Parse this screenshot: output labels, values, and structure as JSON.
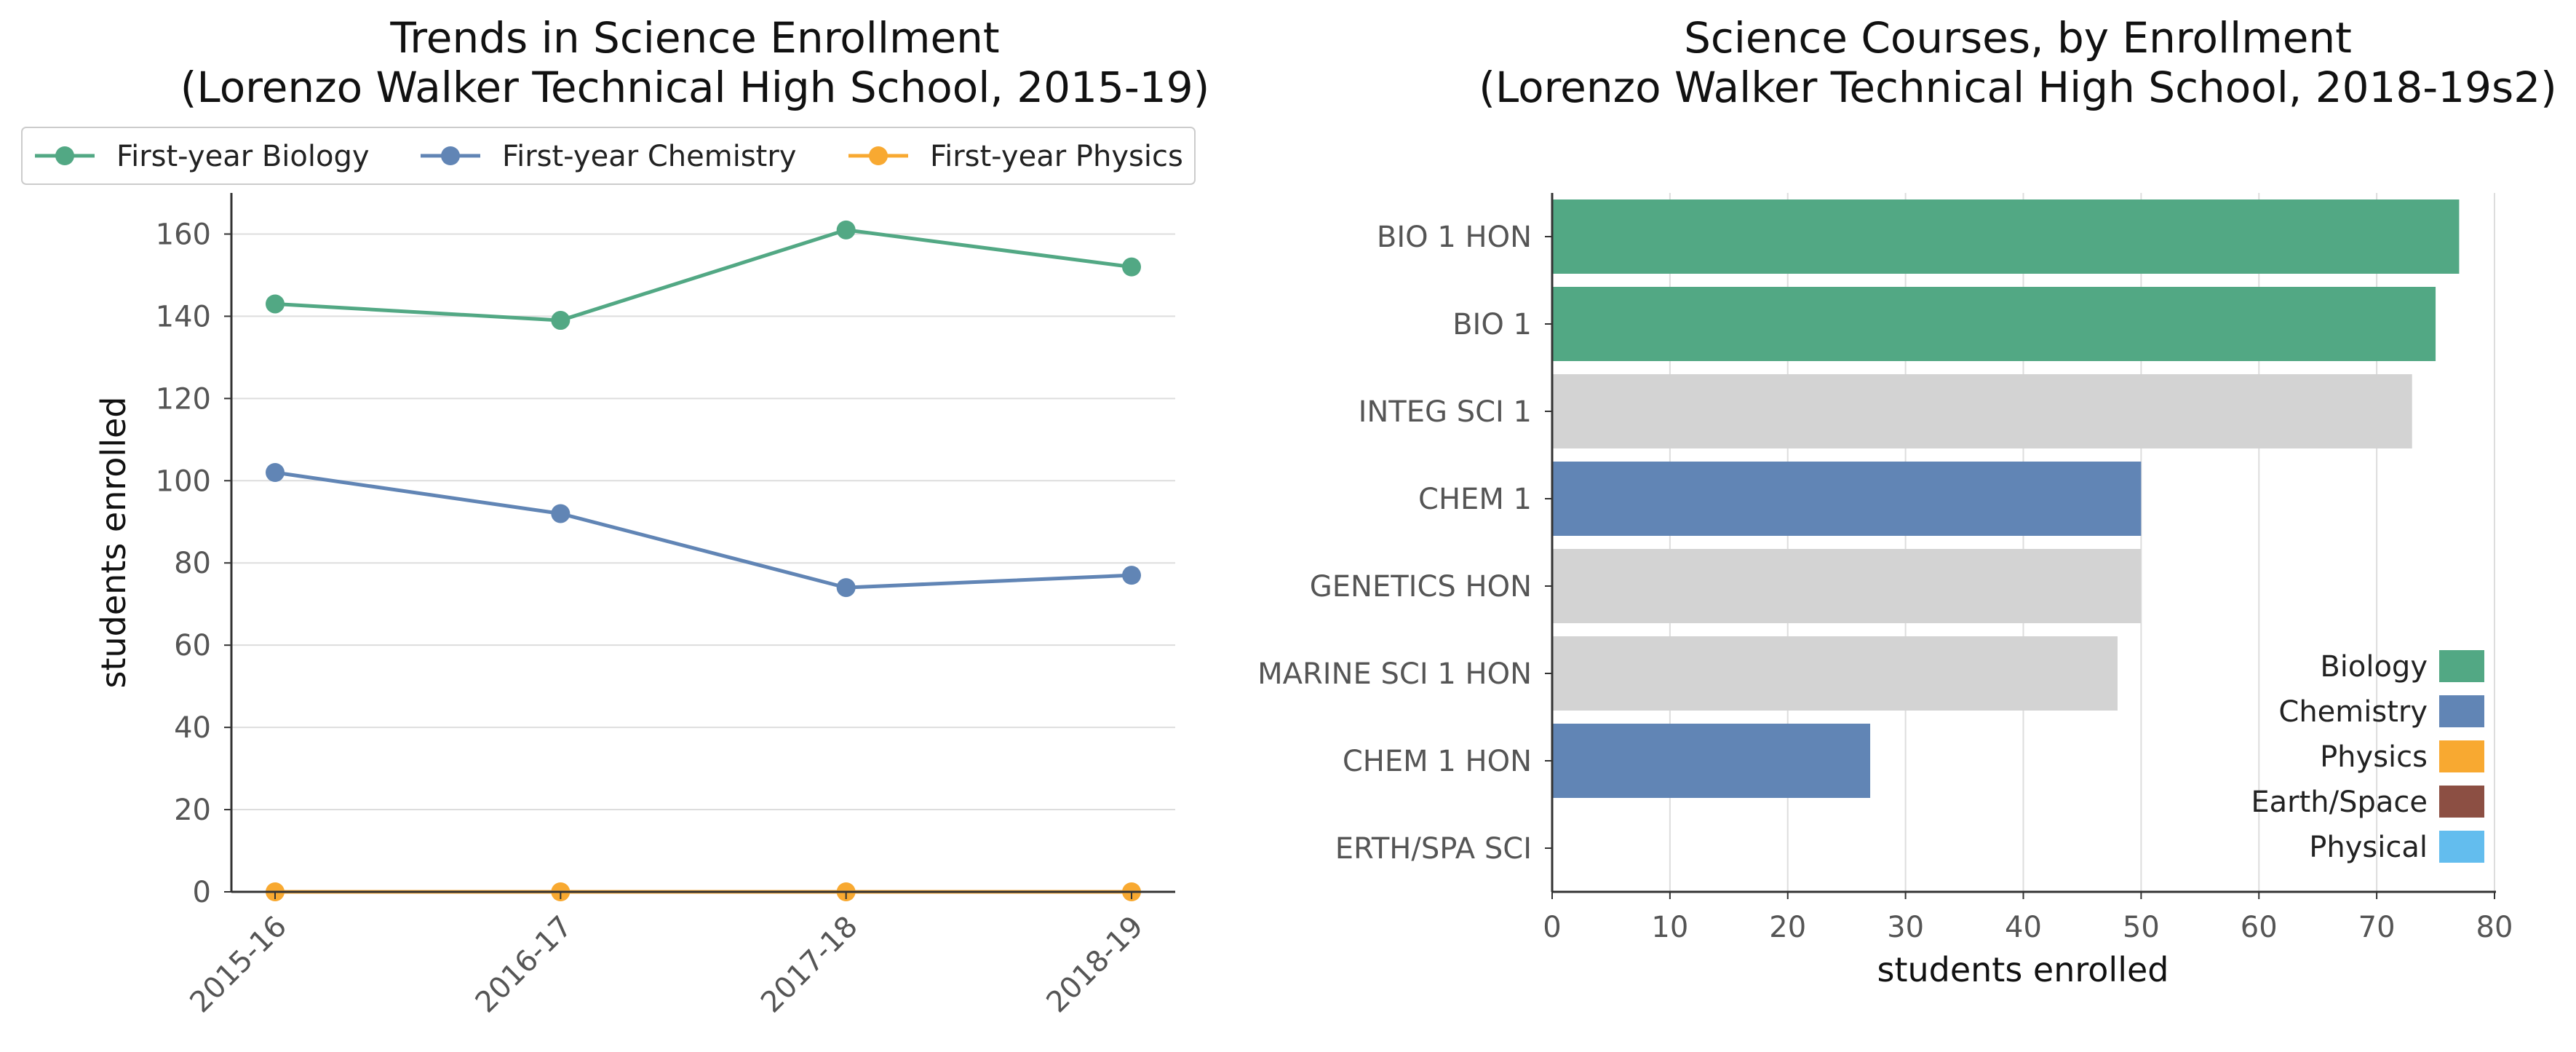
{
  "chart_data": [
    {
      "type": "line",
      "title": "Trends in Science Enrollment",
      "subtitle": "(Lorenzo Walker Technical High School, 2015-19)",
      "xlabel": "",
      "ylabel": "students enrolled",
      "categories": [
        "2015-16",
        "2016-17",
        "2017-18",
        "2018-19"
      ],
      "series": [
        {
          "name": "First-year Biology",
          "color": "#52a884",
          "values": [
            143,
            139,
            161,
            152
          ]
        },
        {
          "name": "First-year Chemistry",
          "color": "#6185b5",
          "values": [
            102,
            92,
            74,
            77
          ]
        },
        {
          "name": "First-year Physics",
          "color": "#f8a931",
          "values": [
            0,
            0,
            0,
            0
          ]
        }
      ],
      "ylim": [
        0,
        170
      ],
      "yticks": [
        0,
        20,
        40,
        60,
        80,
        100,
        120,
        140,
        160
      ],
      "grid": "horizontal",
      "legend_position": "top"
    },
    {
      "type": "bar",
      "orientation": "horizontal",
      "title": "Science Courses, by Enrollment",
      "subtitle": "(Lorenzo Walker Technical High School, 2018-19s2)",
      "xlabel": "students enrolled",
      "ylabel": "",
      "categories": [
        "BIO 1 HON",
        "BIO 1",
        "INTEG SCI 1",
        "CHEM 1",
        "GENETICS HON",
        "MARINE SCI 1 HON",
        "CHEM 1 HON",
        "ERTH/SPA SCI"
      ],
      "values": [
        77,
        75,
        73,
        50,
        50,
        48,
        27,
        0
      ],
      "bar_colors": [
        "#52a884",
        "#52a884",
        "#d3d3d3",
        "#6185b5",
        "#d3d3d3",
        "#d3d3d3",
        "#6185b5",
        "#d3d3d3"
      ],
      "xlim": [
        0,
        80
      ],
      "xticks": [
        0,
        10,
        20,
        30,
        40,
        50,
        60,
        70,
        80
      ],
      "grid": "vertical",
      "legend_position": "lower-right",
      "legend": [
        {
          "name": "Biology",
          "color": "#52a884"
        },
        {
          "name": "Chemistry",
          "color": "#6185b5"
        },
        {
          "name": "Physics",
          "color": "#f8a931"
        },
        {
          "name": "Earth/Space",
          "color": "#8c4f43"
        },
        {
          "name": "Physical",
          "color": "#63bdee"
        }
      ]
    }
  ]
}
